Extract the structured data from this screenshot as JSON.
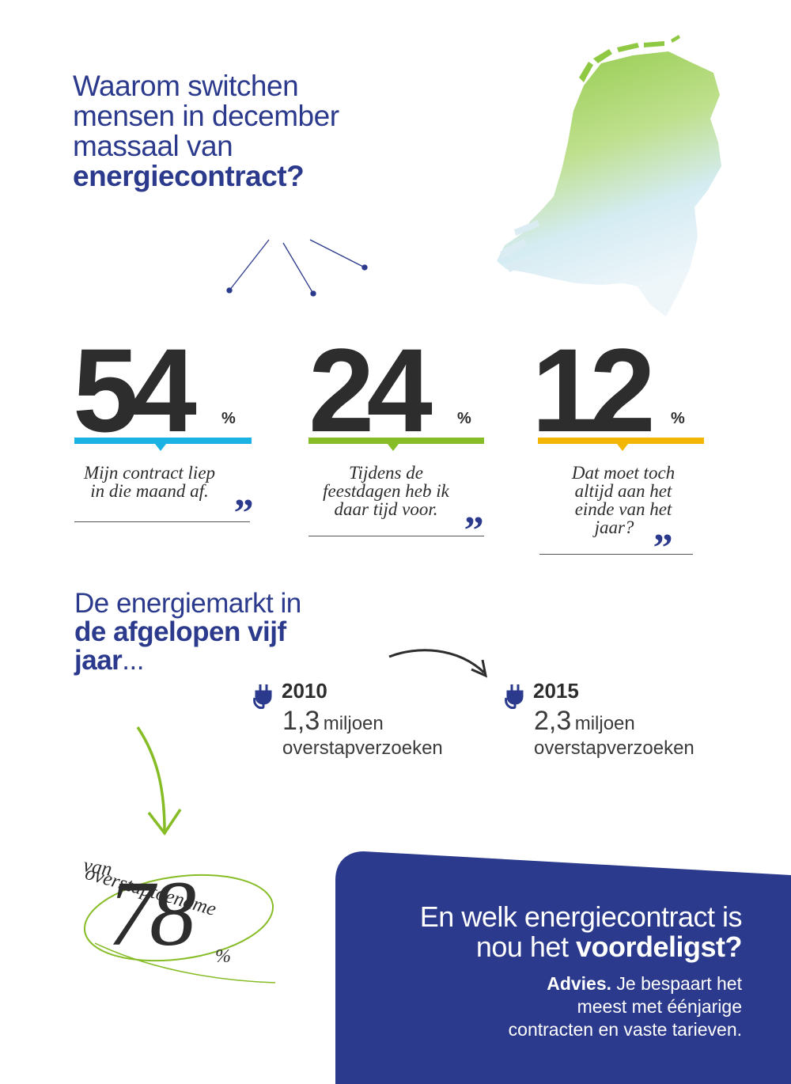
{
  "headline": {
    "line1": "Waarom switchen",
    "line2": "mensen in december",
    "line3": "massaal van",
    "bold": "energiecontract?"
  },
  "stats": [
    {
      "value": "54",
      "unit": "%",
      "quote_l1": "Mijn contract liep",
      "quote_l2": "in die maand af.",
      "color": "#1ab1e3"
    },
    {
      "value": "24",
      "unit": "%",
      "quote_l1": "Tijdens de",
      "quote_l2": "feestdagen heb ik",
      "quote_l3": "daar tijd voor.",
      "color": "#86bc25"
    },
    {
      "value": "12",
      "unit": "%",
      "quote_l1": "Dat moet toch",
      "quote_l2": "altijd aan het",
      "quote_l3": "einde van het",
      "quote_l4": "jaar?",
      "color": "#f2b705"
    }
  ],
  "quote_mark": "„",
  "market": {
    "line1": "De energiemarkt in",
    "line2": "de afgelopen vijf",
    "line3": "jaar",
    "ellipsis": "..."
  },
  "years": [
    {
      "year": "2010",
      "number": "1,3",
      "unit": "miljoen",
      "desc": "overstapverzoeken"
    },
    {
      "year": "2015",
      "number": "2,3",
      "unit": "miljoen",
      "desc": "overstapverzoeken"
    }
  ],
  "increase": {
    "label": "overstaptoename",
    "van": "van",
    "value": "78",
    "unit": "%"
  },
  "advice": {
    "title_l1": "En welk energiecontract is",
    "title_l2_regular": "nou het ",
    "title_l2_bold": "voordeligst?",
    "advies_label": "Advies.",
    "body_l1": " Je bespaart het",
    "body_l2": "meest met éénjarige",
    "body_l3": "contracten en vaste tarieven."
  },
  "colors": {
    "navy": "#2b3a8c",
    "map_green": "#9fd15a",
    "map_blue": "#d6ecf5",
    "accent_green": "#86bc25"
  },
  "icons": [
    "netherlands-map",
    "plug-icon",
    "curved-arrow-icon",
    "down-arrow-icon"
  ]
}
